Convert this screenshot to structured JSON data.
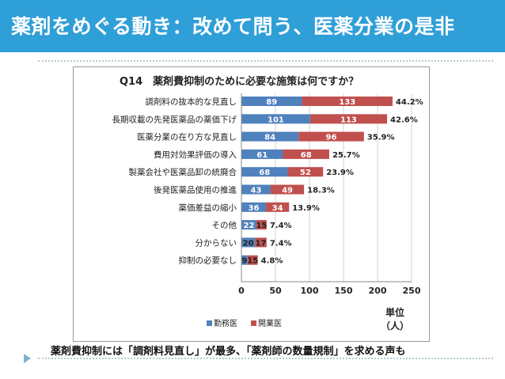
{
  "slide": {
    "title": "薬剤をめぐる動き：改めて問う、医薬分業の是非",
    "caption": "薬剤費抑制には「調剤料見直し」が最多、「薬剤師の数量規制」を求める声も"
  },
  "colors": {
    "title_bar": "#2f9fd8",
    "series_1": "#4f81bd",
    "series_2": "#c0504d"
  },
  "chart_data": {
    "type": "bar",
    "orientation": "horizontal",
    "stacked": true,
    "title": "Q14　薬剤費抑制のために必要な施策は何ですか？",
    "categories": [
      "調剤料の抜本的な見直し",
      "長期収載の先発医薬品の薬価下げ",
      "医薬分業の在り方な見直し",
      "費用対効果評価の導入",
      "製薬会社や医薬品卸の統廃合",
      "後発医薬品使用の推進",
      "薬価差益の縮小",
      "その他",
      "分からない",
      "抑制の必要なし"
    ],
    "series": [
      {
        "name": "勤務医",
        "values": [
          89,
          101,
          84,
          61,
          68,
          43,
          36,
          22,
          20,
          9
        ]
      },
      {
        "name": "開業医",
        "values": [
          133,
          113,
          96,
          68,
          52,
          49,
          34,
          15,
          17,
          15
        ]
      }
    ],
    "percent_labels": [
      "44.2%",
      "42.6%",
      "35.9%",
      "25.7%",
      "23.9%",
      "18.3%",
      "13.9%",
      "7.4%",
      "7.4%",
      "4.8%"
    ],
    "x_ticks": [
      0,
      50,
      100,
      150,
      200,
      250
    ],
    "xlim": [
      0,
      250
    ],
    "unit_label": "単位",
    "unit_value": "（人）",
    "legend_position": "bottom-left",
    "grid": true
  }
}
